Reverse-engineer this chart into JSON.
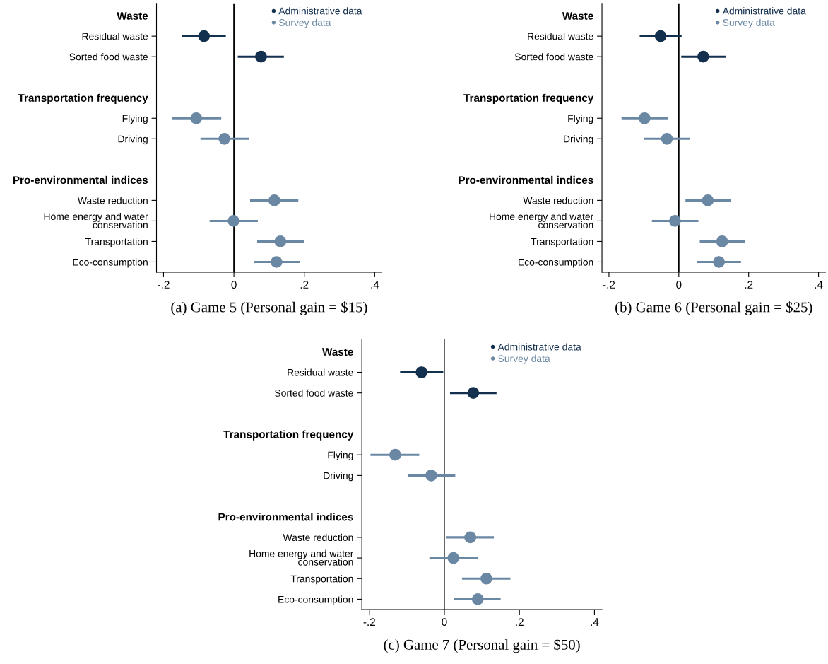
{
  "chart_data": [
    {
      "type": "scatter",
      "orientation": "horizontal",
      "title": "(a) Game 5 (Personal gain = $15)",
      "categories": [
        "Waste",
        "Residual waste",
        "Sorted food waste",
        null,
        "Transportation frequency",
        "Flying",
        "Driving",
        null,
        "Pro-environmental indices",
        "Waste reduction",
        "Home energy and water\nconservation",
        "Transportation",
        "Eco-consumption"
      ],
      "series": [
        {
          "name": "Administrative data",
          "color": "#14304f",
          "values": [
            null,
            -0.085,
            0.077,
            null,
            null,
            null,
            null,
            null,
            null,
            null,
            null,
            null,
            null
          ],
          "errors": [
            null,
            [
              -0.148,
              -0.023
            ],
            [
              0.011,
              0.142
            ],
            null,
            null,
            null,
            null,
            null,
            null,
            null,
            null,
            null,
            null
          ]
        },
        {
          "name": "Survey data",
          "color": "#6a87a3",
          "values": [
            null,
            null,
            null,
            null,
            null,
            -0.107,
            -0.027,
            null,
            null,
            0.115,
            -0.001,
            0.132,
            0.121
          ],
          "errors": [
            null,
            null,
            null,
            null,
            null,
            [
              -0.176,
              -0.036
            ],
            [
              -0.095,
              0.042
            ],
            null,
            null,
            [
              0.046,
              0.183
            ],
            [
              -0.069,
              0.068
            ],
            [
              0.066,
              0.199
            ],
            [
              0.057,
              0.187
            ]
          ]
        }
      ],
      "xlim": [
        -0.22,
        0.42
      ],
      "xticks": [
        {
          "value": -0.2,
          "label": "-.2"
        },
        0,
        {
          "value": 0.2,
          "label": ".2"
        },
        {
          "value": 0.4,
          "label": ".4"
        }
      ],
      "ref_lines": [
        {
          "axis": "x",
          "value": 0,
          "color": "#000000"
        }
      ],
      "grid": false,
      "legend": "top right",
      "marker": "circle"
    },
    {
      "type": "scatter",
      "orientation": "horizontal",
      "title": "(b) Game 6 (Personal gain = $25)",
      "categories": [
        "Waste",
        "Residual waste",
        "Sorted food waste",
        null,
        "Transportation frequency",
        "Flying",
        "Driving",
        null,
        "Pro-environmental indices",
        "Waste reduction",
        "Home energy and water\nconservation",
        "Transportation",
        "Eco-consumption"
      ],
      "series": [
        {
          "name": "Administrative data",
          "color": "#14304f",
          "values": [
            null,
            -0.052,
            0.07,
            null,
            null,
            null,
            null,
            null,
            null,
            null,
            null,
            null,
            null
          ],
          "errors": [
            null,
            [
              -0.112,
              0.008
            ],
            [
              0.007,
              0.135
            ],
            null,
            null,
            null,
            null,
            null,
            null,
            null,
            null,
            null,
            null
          ]
        },
        {
          "name": "Survey data",
          "color": "#6a87a3",
          "values": [
            null,
            null,
            null,
            null,
            null,
            -0.098,
            -0.034,
            null,
            null,
            0.083,
            -0.011,
            0.124,
            0.115
          ],
          "errors": [
            null,
            null,
            null,
            null,
            null,
            [
              -0.164,
              -0.03
            ],
            [
              -0.1,
              0.031
            ],
            null,
            null,
            [
              0.019,
              0.149
            ],
            [
              -0.077,
              0.056
            ],
            [
              0.06,
              0.189
            ],
            [
              0.052,
              0.178
            ]
          ]
        }
      ],
      "xlim": [
        -0.22,
        0.42
      ],
      "xticks": [
        {
          "value": -0.2,
          "label": "-.2"
        },
        0,
        {
          "value": 0.2,
          "label": ".2"
        },
        {
          "value": 0.4,
          "label": ".4"
        }
      ],
      "ref_lines": [
        {
          "axis": "x",
          "value": 0,
          "color": "#000000"
        }
      ],
      "grid": false,
      "legend": "top right",
      "marker": "circle"
    },
    {
      "type": "scatter",
      "orientation": "horizontal",
      "title": "(c) Game 7 (Personal gain = $50)",
      "categories": [
        "Waste",
        "Residual waste",
        "Sorted food waste",
        null,
        "Transportation frequency",
        "Flying",
        "Driving",
        null,
        "Pro-environmental indices",
        "Waste reduction",
        "Home energy and water\nconservation",
        "Transportation",
        "Eco-consumption"
      ],
      "series": [
        {
          "name": "Administrative data",
          "color": "#14304f",
          "values": [
            null,
            -0.061,
            0.077,
            null,
            null,
            null,
            null,
            null,
            null,
            null,
            null,
            null,
            null
          ],
          "errors": [
            null,
            [
              -0.118,
              -0.003
            ],
            [
              0.015,
              0.139
            ],
            null,
            null,
            null,
            null,
            null,
            null,
            null,
            null,
            null,
            null
          ]
        },
        {
          "name": "Survey data",
          "color": "#6a87a3",
          "values": [
            null,
            null,
            null,
            null,
            null,
            -0.131,
            -0.035,
            null,
            null,
            0.069,
            0.024,
            0.112,
            0.089
          ],
          "errors": [
            null,
            null,
            null,
            null,
            null,
            [
              -0.197,
              -0.067
            ],
            [
              -0.098,
              0.029
            ],
            null,
            null,
            [
              0.005,
              0.132
            ],
            [
              -0.04,
              0.089
            ],
            [
              0.047,
              0.176
            ],
            [
              0.026,
              0.15
            ]
          ]
        }
      ],
      "xlim": [
        -0.22,
        0.42
      ],
      "xticks": [
        {
          "value": -0.2,
          "label": "-.2"
        },
        0,
        {
          "value": 0.2,
          "label": ".2"
        },
        {
          "value": 0.4,
          "label": ".4"
        }
      ],
      "ref_lines": [
        {
          "axis": "x",
          "value": 0,
          "color": "#555555"
        }
      ],
      "grid": false,
      "legend": "top right",
      "marker": "circle"
    }
  ]
}
